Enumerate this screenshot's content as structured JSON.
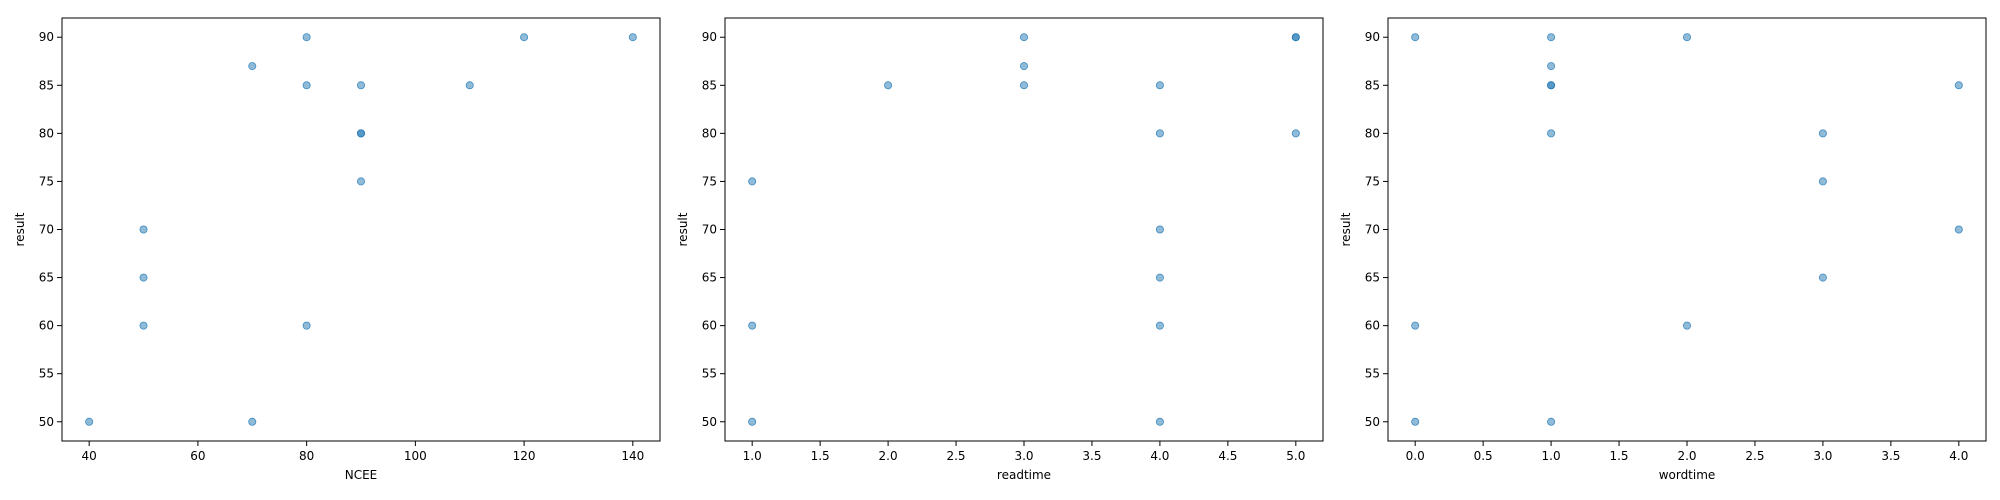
{
  "colors": {
    "marker": "#1f77b4",
    "axis": "#000000",
    "background": "#ffffff"
  },
  "chart_data": [
    {
      "type": "scatter",
      "xlabel": "NCEE",
      "ylabel": "result",
      "xlim": [
        35,
        145
      ],
      "ylim": [
        48,
        92
      ],
      "xticks": [
        40,
        60,
        80,
        100,
        120,
        140
      ],
      "xtick_labels": [
        "40",
        "60",
        "80",
        "100",
        "120",
        "140"
      ],
      "yticks": [
        50,
        55,
        60,
        65,
        70,
        75,
        80,
        85,
        90
      ],
      "ytick_labels": [
        "50",
        "55",
        "60",
        "65",
        "70",
        "75",
        "80",
        "85",
        "90"
      ],
      "grid": false,
      "points": [
        {
          "x": 40,
          "y": 50
        },
        {
          "x": 50,
          "y": 60
        },
        {
          "x": 50,
          "y": 65
        },
        {
          "x": 50,
          "y": 70
        },
        {
          "x": 70,
          "y": 50
        },
        {
          "x": 70,
          "y": 87
        },
        {
          "x": 80,
          "y": 60
        },
        {
          "x": 80,
          "y": 85
        },
        {
          "x": 80,
          "y": 90
        },
        {
          "x": 90,
          "y": 75
        },
        {
          "x": 90,
          "y": 80
        },
        {
          "x": 90,
          "y": 80
        },
        {
          "x": 90,
          "y": 85
        },
        {
          "x": 110,
          "y": 85
        },
        {
          "x": 120,
          "y": 90
        },
        {
          "x": 140,
          "y": 90
        }
      ]
    },
    {
      "type": "scatter",
      "xlabel": "readtime",
      "ylabel": "result",
      "xlim": [
        0.8,
        5.2
      ],
      "ylim": [
        48,
        92
      ],
      "xticks": [
        1.0,
        1.5,
        2.0,
        2.5,
        3.0,
        3.5,
        4.0,
        4.5,
        5.0
      ],
      "xtick_labels": [
        "1.0",
        "1.5",
        "2.0",
        "2.5",
        "3.0",
        "3.5",
        "4.0",
        "4.5",
        "5.0"
      ],
      "yticks": [
        50,
        55,
        60,
        65,
        70,
        75,
        80,
        85,
        90
      ],
      "ytick_labels": [
        "50",
        "55",
        "60",
        "65",
        "70",
        "75",
        "80",
        "85",
        "90"
      ],
      "grid": false,
      "points": [
        {
          "x": 1,
          "y": 50
        },
        {
          "x": 1,
          "y": 60
        },
        {
          "x": 1,
          "y": 75
        },
        {
          "x": 2,
          "y": 85
        },
        {
          "x": 3,
          "y": 85
        },
        {
          "x": 3,
          "y": 87
        },
        {
          "x": 3,
          "y": 90
        },
        {
          "x": 4,
          "y": 50
        },
        {
          "x": 4,
          "y": 60
        },
        {
          "x": 4,
          "y": 65
        },
        {
          "x": 4,
          "y": 70
        },
        {
          "x": 4,
          "y": 80
        },
        {
          "x": 4,
          "y": 85
        },
        {
          "x": 5,
          "y": 80
        },
        {
          "x": 5,
          "y": 90
        },
        {
          "x": 5,
          "y": 90
        }
      ]
    },
    {
      "type": "scatter",
      "xlabel": "wordtime",
      "ylabel": "result",
      "xlim": [
        -0.2,
        4.2
      ],
      "ylim": [
        48,
        92
      ],
      "xticks": [
        0.0,
        0.5,
        1.0,
        1.5,
        2.0,
        2.5,
        3.0,
        3.5,
        4.0
      ],
      "xtick_labels": [
        "0.0",
        "0.5",
        "1.0",
        "1.5",
        "2.0",
        "2.5",
        "3.0",
        "3.5",
        "4.0"
      ],
      "yticks": [
        50,
        55,
        60,
        65,
        70,
        75,
        80,
        85,
        90
      ],
      "ytick_labels": [
        "50",
        "55",
        "60",
        "65",
        "70",
        "75",
        "80",
        "85",
        "90"
      ],
      "grid": false,
      "points": [
        {
          "x": 0,
          "y": 50
        },
        {
          "x": 0,
          "y": 60
        },
        {
          "x": 0,
          "y": 90
        },
        {
          "x": 1,
          "y": 50
        },
        {
          "x": 1,
          "y": 80
        },
        {
          "x": 1,
          "y": 85
        },
        {
          "x": 1,
          "y": 85
        },
        {
          "x": 1,
          "y": 87
        },
        {
          "x": 1,
          "y": 90
        },
        {
          "x": 2,
          "y": 60
        },
        {
          "x": 2,
          "y": 90
        },
        {
          "x": 3,
          "y": 65
        },
        {
          "x": 3,
          "y": 75
        },
        {
          "x": 3,
          "y": 80
        },
        {
          "x": 4,
          "y": 70
        },
        {
          "x": 4,
          "y": 85
        }
      ]
    }
  ]
}
